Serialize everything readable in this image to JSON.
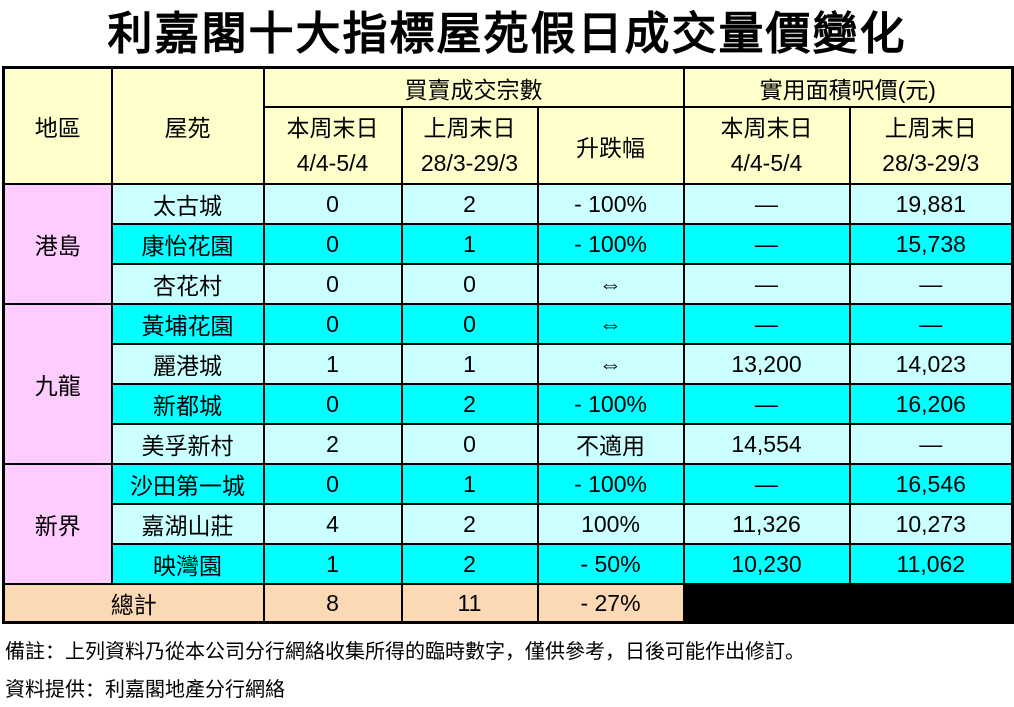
{
  "page": {
    "title": "利嘉閣十大指標屋苑假日成交量價變化",
    "note": "備註：上列資料乃從本公司分行網絡收集所得的臨時數字，僅供參考，日後可能作出修訂。",
    "source": "資料提供：利嘉閣地產分行網絡"
  },
  "colors": {
    "header_bg": "#FFFFCC",
    "region_bg": "#FFCCFF",
    "row_light_bg": "#CCFFFF",
    "row_bright_bg": "#00FFFF",
    "total_bg": "#FBD9B5",
    "blackout_bg": "#000000",
    "border": "#000000"
  },
  "table": {
    "headers": {
      "region": "地區",
      "estate": "屋苑",
      "transactions_group": "買賣成交宗數",
      "price_group": "實用面積呎價(元)",
      "this_week_label": "本周末日",
      "this_week_dates": "4/4-5/4",
      "last_week_label": "上周末日",
      "last_week_dates": "28/3-29/3",
      "change": "升跌幅"
    },
    "regions": [
      {
        "label": "港島"
      },
      {
        "label": "九龍"
      },
      {
        "label": "新界"
      }
    ],
    "rows": [
      {
        "estate": "太古城",
        "tw": "0",
        "lw": "2",
        "chg": "- 100%",
        "ptw": "—",
        "plw": "19,881"
      },
      {
        "estate": "康怡花園",
        "tw": "0",
        "lw": "1",
        "chg": "- 100%",
        "ptw": "—",
        "plw": "15,738"
      },
      {
        "estate": "杏花村",
        "tw": "0",
        "lw": "0",
        "chg": "⇔",
        "ptw": "—",
        "plw": "—"
      },
      {
        "estate": "黃埔花園",
        "tw": "0",
        "lw": "0",
        "chg": "⇔",
        "ptw": "—",
        "plw": "—"
      },
      {
        "estate": "麗港城",
        "tw": "1",
        "lw": "1",
        "chg": "⇔",
        "ptw": "13,200",
        "plw": "14,023"
      },
      {
        "estate": "新都城",
        "tw": "0",
        "lw": "2",
        "chg": "- 100%",
        "ptw": "—",
        "plw": "16,206"
      },
      {
        "estate": "美孚新村",
        "tw": "2",
        "lw": "0",
        "chg": "不適用",
        "ptw": "14,554",
        "plw": "—"
      },
      {
        "estate": "沙田第一城",
        "tw": "0",
        "lw": "1",
        "chg": "- 100%",
        "ptw": "—",
        "plw": "16,546"
      },
      {
        "estate": "嘉湖山莊",
        "tw": "4",
        "lw": "2",
        "chg": "100%",
        "ptw": "11,326",
        "plw": "10,273"
      },
      {
        "estate": "映灣園",
        "tw": "1",
        "lw": "2",
        "chg": "- 50%",
        "ptw": "10,230",
        "plw": "11,062"
      }
    ],
    "total": {
      "label": "總計",
      "tw": "8",
      "lw": "11",
      "chg": "- 27%"
    }
  }
}
